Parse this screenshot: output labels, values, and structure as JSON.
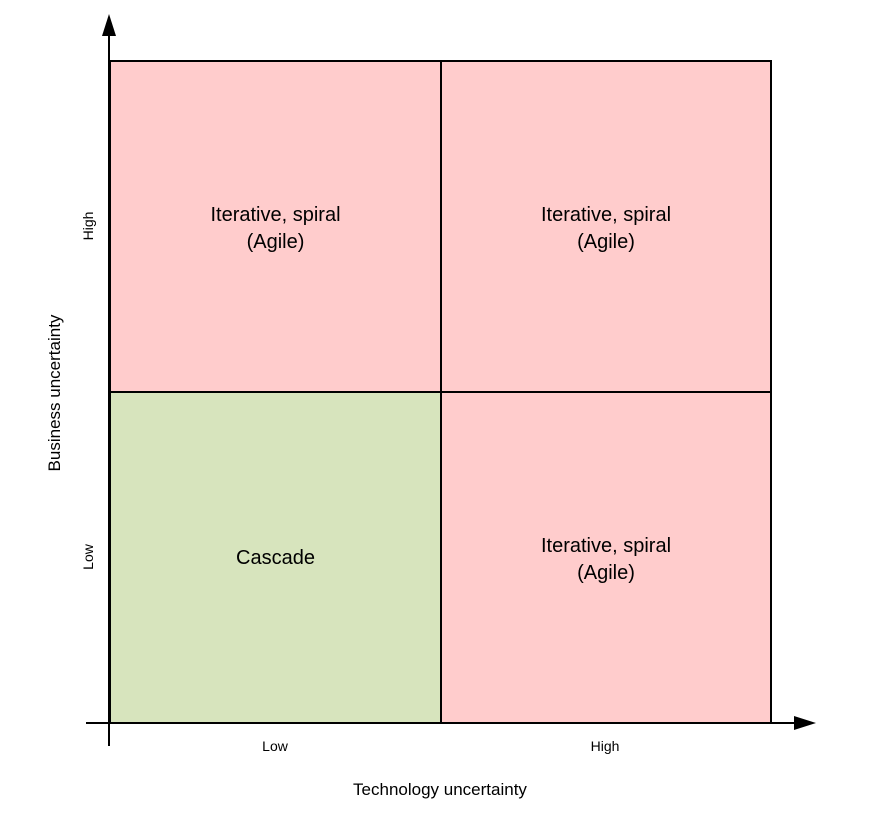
{
  "colors": {
    "agile_fill": "#ffcccc",
    "cascade_fill": "#d7e4bd",
    "line": "#000000"
  },
  "quadrants": {
    "top_left": {
      "line1": "Iterative, spiral",
      "line2": "(Agile)"
    },
    "top_right": {
      "line1": "Iterative, spiral",
      "line2": "(Agile)"
    },
    "bottom_left": {
      "line1": "Cascade"
    },
    "bottom_right": {
      "line1": "Iterative, spiral",
      "line2": "(Agile)"
    }
  },
  "x_axis": {
    "title": "Technology uncertainty",
    "ticks": [
      "Low",
      "High"
    ]
  },
  "y_axis": {
    "title": "Business uncertainty",
    "ticks": [
      "Low",
      "High"
    ]
  }
}
